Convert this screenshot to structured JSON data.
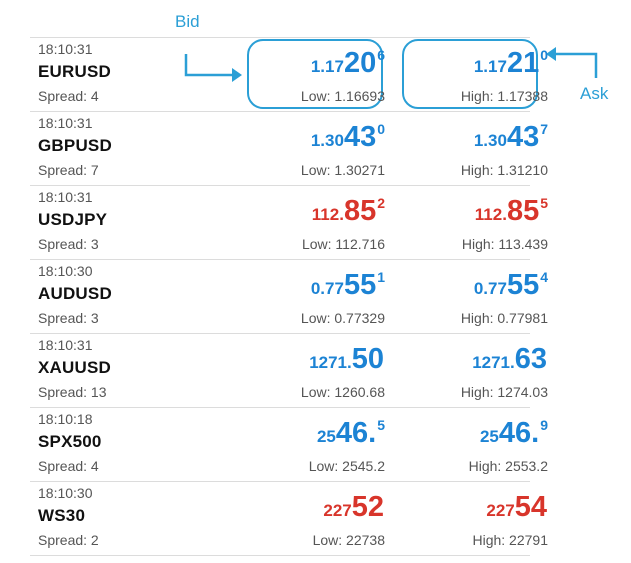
{
  "annotations": {
    "bid_label": "Bid",
    "ask_label": "Ask",
    "color": "#2b9fd6"
  },
  "colors": {
    "up": "#1c83d4",
    "down": "#d8352b"
  },
  "quotes": [
    {
      "time": "18:10:31",
      "symbol": "EURUSD",
      "spread": "Spread: 4",
      "bid": {
        "prefix": "1.17",
        "big": "20",
        "sup": "6",
        "color": "blue"
      },
      "ask": {
        "prefix": "1.17",
        "big": "21",
        "sup": "0",
        "color": "blue"
      },
      "low": "Low: 1.16693",
      "high": "High: 1.17388"
    },
    {
      "time": "18:10:31",
      "symbol": "GBPUSD",
      "spread": "Spread: 7",
      "bid": {
        "prefix": "1.30",
        "big": "43",
        "sup": "0",
        "color": "blue"
      },
      "ask": {
        "prefix": "1.30",
        "big": "43",
        "sup": "7",
        "color": "blue"
      },
      "low": "Low: 1.30271",
      "high": "High: 1.31210"
    },
    {
      "time": "18:10:31",
      "symbol": "USDJPY",
      "spread": "Spread: 3",
      "bid": {
        "prefix": "112.",
        "big": "85",
        "sup": "2",
        "color": "red"
      },
      "ask": {
        "prefix": "112.",
        "big": "85",
        "sup": "5",
        "color": "red"
      },
      "low": "Low: 112.716",
      "high": "High: 113.439"
    },
    {
      "time": "18:10:30",
      "symbol": "AUDUSD",
      "spread": "Spread: 3",
      "bid": {
        "prefix": "0.77",
        "big": "55",
        "sup": "1",
        "color": "blue"
      },
      "ask": {
        "prefix": "0.77",
        "big": "55",
        "sup": "4",
        "color": "blue"
      },
      "low": "Low: 0.77329",
      "high": "High: 0.77981"
    },
    {
      "time": "18:10:31",
      "symbol": "XAUUSD",
      "spread": "Spread: 13",
      "bid": {
        "prefix": "1271.",
        "big": "50",
        "sup": "",
        "color": "blue"
      },
      "ask": {
        "prefix": "1271.",
        "big": "63",
        "sup": "",
        "color": "blue"
      },
      "low": "Low: 1260.68",
      "high": "High: 1274.03"
    },
    {
      "time": "18:10:18",
      "symbol": "SPX500",
      "spread": "Spread: 4",
      "bid": {
        "prefix": "25",
        "big": "46.",
        "sup": "5",
        "color": "blue"
      },
      "ask": {
        "prefix": "25",
        "big": "46.",
        "sup": "9",
        "color": "blue"
      },
      "low": "Low: 2545.2",
      "high": "High: 2553.2"
    },
    {
      "time": "18:10:30",
      "symbol": "WS30",
      "spread": "Spread: 2",
      "bid": {
        "prefix": "227",
        "big": "52",
        "sup": "",
        "color": "red"
      },
      "ask": {
        "prefix": "227",
        "big": "54",
        "sup": "",
        "color": "red"
      },
      "low": "Low: 22738",
      "high": "High: 22791"
    }
  ]
}
